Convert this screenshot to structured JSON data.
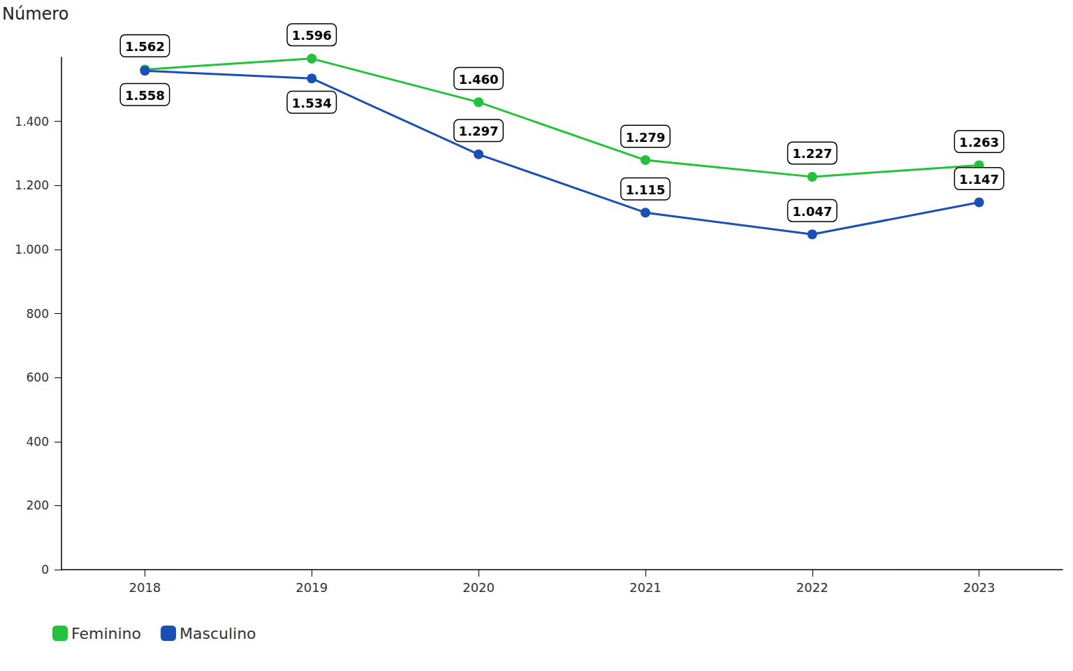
{
  "chart_data": {
    "type": "line",
    "y_label": "Número",
    "categories": [
      "2018",
      "2019",
      "2020",
      "2021",
      "2022",
      "2023"
    ],
    "series": [
      {
        "name": "Feminino",
        "color": "#22c33a",
        "marker": "circle",
        "values": [
          1562,
          1596,
          1460,
          1279,
          1227,
          1263
        ],
        "value_labels": [
          "1.562",
          "1.596",
          "1.460",
          "1.279",
          "1.227",
          "1.263"
        ]
      },
      {
        "name": "Masculino",
        "color": "#1a4fb5",
        "marker": "circle",
        "values": [
          1558,
          1534,
          1297,
          1115,
          1047,
          1147
        ],
        "value_labels": [
          "1.558",
          "1.534",
          "1.297",
          "1.115",
          "1.047",
          "1.147"
        ]
      }
    ],
    "ylim": [
      0,
      1600
    ],
    "yticks": [
      0,
      200,
      400,
      600,
      800,
      {
        "value": 1000,
        "label": "1.000"
      },
      {
        "value": 1200,
        "label": "1.200"
      },
      {
        "value": 1400,
        "label": "1.400"
      }
    ],
    "grid": false,
    "legend": "bottom-left",
    "data_labels": true
  }
}
